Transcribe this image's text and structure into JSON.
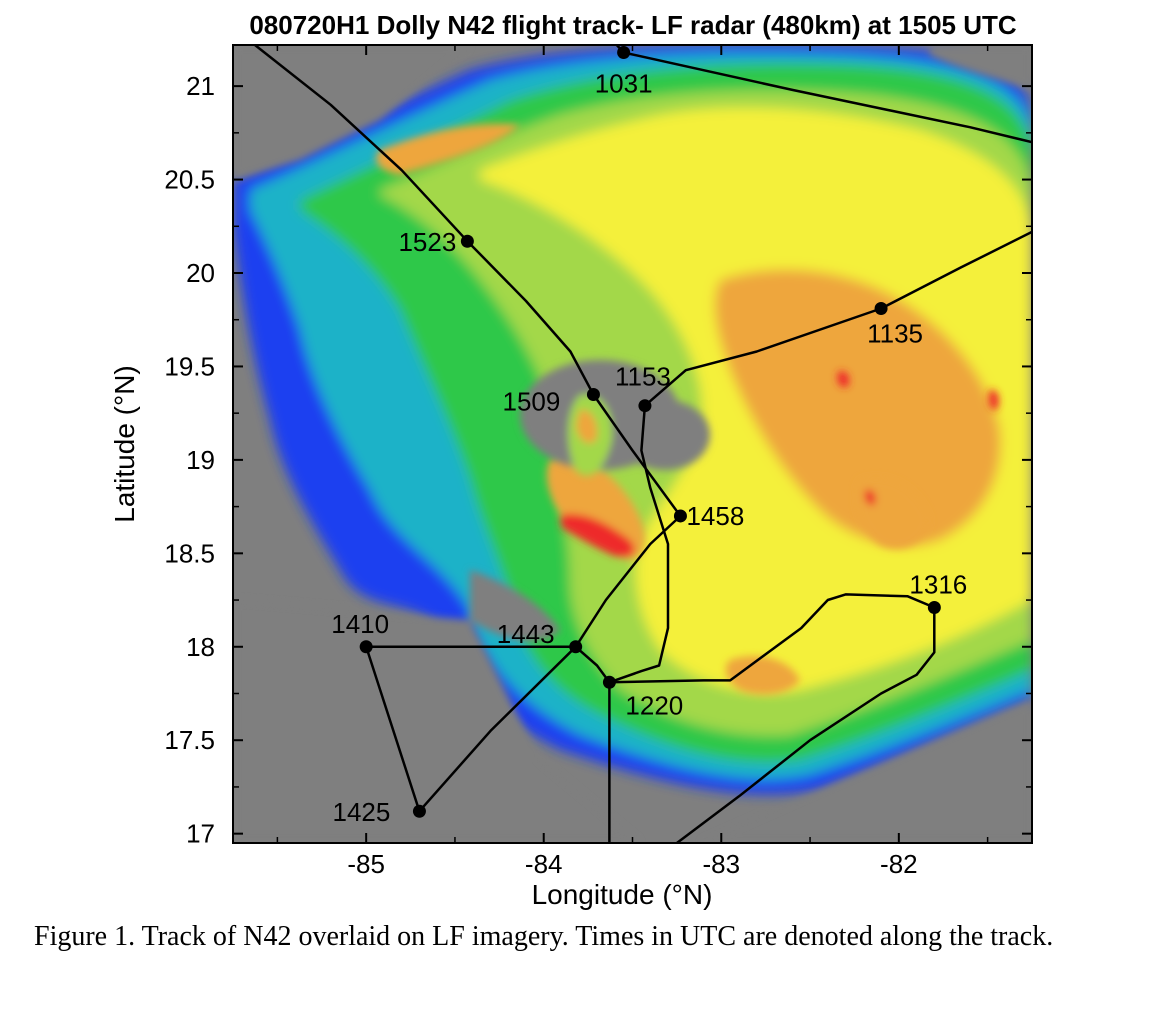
{
  "chart_data": {
    "type": "scatter",
    "title": "080720H1 Dolly N42 flight track- LF radar (480km) at 1505 UTC",
    "xlabel": "Longitude (°N)",
    "ylabel": "Latitude (°N)",
    "xlim": [
      -85.75,
      -81.25
    ],
    "ylim": [
      16.95,
      21.22
    ],
    "x_ticks": [
      -85,
      -84,
      -83,
      -82
    ],
    "y_ticks": [
      17,
      17.5,
      18,
      18.5,
      19,
      19.5,
      20,
      20.5,
      21
    ],
    "x_tick_labels": [
      "-85",
      "-84",
      "-83",
      "-82"
    ],
    "y_tick_labels": [
      "17",
      "17.5",
      "18",
      "18.5",
      "19",
      "19.5",
      "20",
      "20.5",
      "21"
    ],
    "grid": false,
    "colors": {
      "background": "#7f7f7f",
      "blue": "#1c3ff0",
      "cyan": "#1fb2c8",
      "green": "#2ec84a",
      "light_green": "#a3d84a",
      "yellow": "#f4f03a",
      "orange": "#eea63c",
      "red": "#ee2a2a",
      "track": "#000000"
    },
    "labeled_points": [
      {
        "label": "1031",
        "lon": -83.55,
        "lat": 21.18
      },
      {
        "label": "1135",
        "lon": -82.1,
        "lat": 19.81
      },
      {
        "label": "1153",
        "lon": -83.43,
        "lat": 19.29
      },
      {
        "label": "1220",
        "lon": -83.63,
        "lat": 17.81
      },
      {
        "label": "1316",
        "lon": -81.8,
        "lat": 18.21
      },
      {
        "label": "1410",
        "lon": -85.0,
        "lat": 18.0
      },
      {
        "label": "1425",
        "lon": -84.7,
        "lat": 17.12
      },
      {
        "label": "1443",
        "lon": -83.82,
        "lat": 18.0
      },
      {
        "label": "1458",
        "lon": -83.23,
        "lat": 18.7
      },
      {
        "label": "1509",
        "lon": -83.72,
        "lat": 19.35
      },
      {
        "label": "1523",
        "lon": -84.43,
        "lat": 20.17
      }
    ],
    "track_segments": [
      [
        [
          -86.2,
          21.65
        ],
        [
          -85.2,
          20.9
        ],
        [
          -84.8,
          20.55
        ],
        [
          -84.43,
          20.17
        ],
        [
          -84.1,
          19.85
        ],
        [
          -83.85,
          19.58
        ],
        [
          -83.72,
          19.35
        ],
        [
          -83.5,
          19.05
        ],
        [
          -83.23,
          18.7
        ],
        [
          -83.4,
          18.55
        ],
        [
          -83.65,
          18.25
        ],
        [
          -83.82,
          18.0
        ],
        [
          -84.3,
          17.55
        ],
        [
          -84.7,
          17.12
        ],
        [
          -85.0,
          18.0
        ],
        [
          -83.82,
          18.0
        ],
        [
          -83.7,
          17.9
        ],
        [
          -83.63,
          17.81
        ],
        [
          -83.63,
          16.95
        ]
      ],
      [
        [
          -83.63,
          17.81
        ],
        [
          -83.45,
          17.87
        ],
        [
          -83.35,
          17.9
        ],
        [
          -83.3,
          18.1
        ],
        [
          -83.3,
          18.55
        ],
        [
          -83.4,
          18.85
        ],
        [
          -83.45,
          19.05
        ],
        [
          -83.43,
          19.29
        ],
        [
          -83.2,
          19.48
        ],
        [
          -82.8,
          19.58
        ],
        [
          -82.1,
          19.81
        ],
        [
          -81.65,
          20.03
        ],
        [
          -81.25,
          20.22
        ]
      ],
      [
        [
          -83.63,
          17.81
        ],
        [
          -83.1,
          17.82
        ],
        [
          -82.95,
          17.82
        ],
        [
          -82.55,
          18.1
        ],
        [
          -82.4,
          18.25
        ],
        [
          -82.3,
          18.28
        ],
        [
          -81.95,
          18.27
        ],
        [
          -81.8,
          18.21
        ],
        [
          -81.8,
          17.97
        ],
        [
          -81.9,
          17.85
        ],
        [
          -82.1,
          17.75
        ],
        [
          -82.5,
          17.5
        ],
        [
          -82.9,
          17.2
        ],
        [
          -83.25,
          16.95
        ]
      ],
      [
        [
          -84.0,
          21.65
        ],
        [
          -83.55,
          21.18
        ],
        [
          -82.6,
          20.98
        ],
        [
          -81.6,
          20.78
        ],
        [
          -81.25,
          20.7
        ]
      ]
    ]
  },
  "caption": "Figure 1.  Track of N42 overlaid on LF imagery. Times in UTC are denoted along the track."
}
